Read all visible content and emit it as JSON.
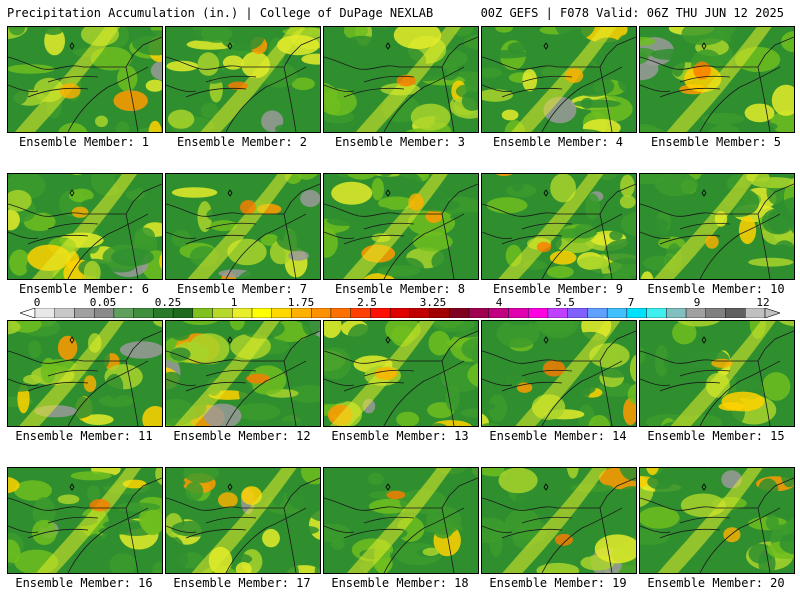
{
  "header": {
    "title_left": "Precipitation Accumulation (in.) | College of DuPage NEXLAB",
    "title_right": "00Z GEFS | F078 Valid: 06Z THU JUN 12 2025"
  },
  "colorbar": {
    "tick_labels": [
      "0",
      "0.05",
      "0.25",
      "1",
      "1.75",
      "2.5",
      "3.25",
      "4",
      "5.5",
      "7",
      "9",
      "12"
    ],
    "colors": [
      "#e8e8e8",
      "#c8c8c8",
      "#a0a0a0",
      "#8a8a8a",
      "#5fa05f",
      "#3f8f3f",
      "#2a7a2a",
      "#1f6a1f",
      "#7fc21f",
      "#b5d82a",
      "#e8ef2a",
      "#ffff00",
      "#ffd800",
      "#ffb000",
      "#ff9000",
      "#ff7000",
      "#ff4000",
      "#ff1000",
      "#e00000",
      "#c00000",
      "#a00000",
      "#800020",
      "#a00050",
      "#c00080",
      "#e000b0",
      "#ff00e0",
      "#c040ff",
      "#8060ff",
      "#60a0ff",
      "#40c0ff",
      "#00e0ff",
      "#40f0f0",
      "#80c0c0",
      "#a0a0a0",
      "#808080",
      "#606060",
      "#c0c0c0"
    ]
  },
  "members": [
    {
      "label": "Ensemble Member: 1"
    },
    {
      "label": "Ensemble Member: 2"
    },
    {
      "label": "Ensemble Member: 3"
    },
    {
      "label": "Ensemble Member: 4"
    },
    {
      "label": "Ensemble Member: 5"
    },
    {
      "label": "Ensemble Member: 6"
    },
    {
      "label": "Ensemble Member: 7"
    },
    {
      "label": "Ensemble Member: 8"
    },
    {
      "label": "Ensemble Member: 9"
    },
    {
      "label": "Ensemble Member: 10"
    },
    {
      "label": "Ensemble Member: 11"
    },
    {
      "label": "Ensemble Member: 12"
    },
    {
      "label": "Ensemble Member: 13"
    },
    {
      "label": "Ensemble Member: 14"
    },
    {
      "label": "Ensemble Member: 15"
    },
    {
      "label": "Ensemble Member: 16"
    },
    {
      "label": "Ensemble Member: 17"
    },
    {
      "label": "Ensemble Member: 18"
    },
    {
      "label": "Ensemble Member: 19"
    },
    {
      "label": "Ensemble Member: 20"
    }
  ]
}
